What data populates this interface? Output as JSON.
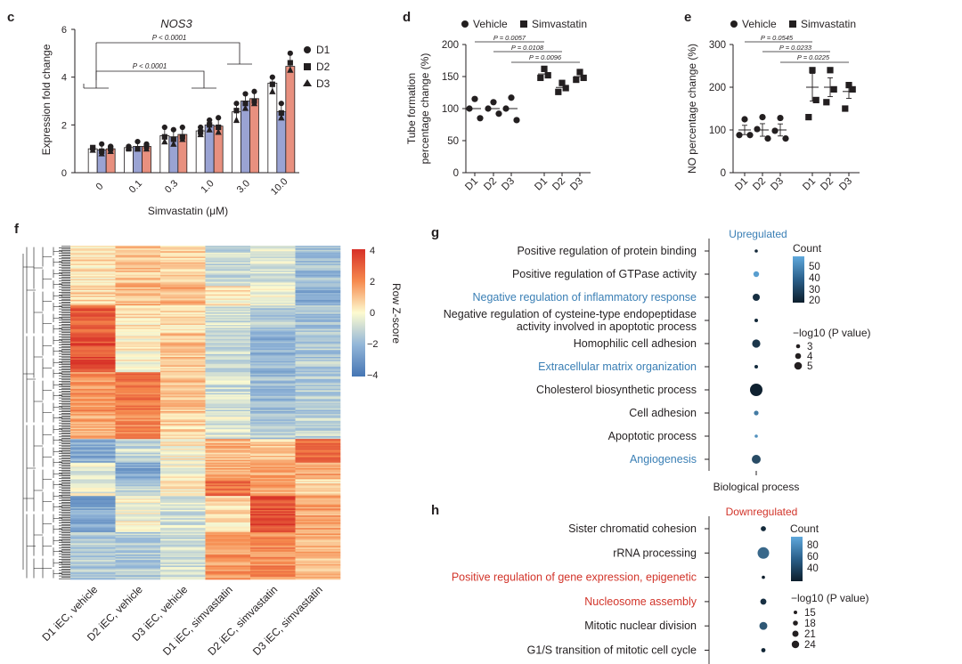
{
  "colors": {
    "vehicle_bar": "#9aa3d3",
    "simva_bar": "#e8907f",
    "blue_term": "#3a7fb5",
    "red_term": "#d2342a",
    "heat_high": "#d73027",
    "heat_mid": "#fdfbd0",
    "heat_low": "#4575b4"
  },
  "panels": {
    "c": {
      "letter": "c",
      "title": "NOS3",
      "ylabel": "Expression fold change",
      "xlabel": "Simvastatin (μM)",
      "p1": "P < 0.0001",
      "p2": "P < 0.0001",
      "legend": [
        "D1",
        "D2",
        "D3"
      ]
    },
    "d": {
      "letter": "d",
      "legend_vehicle": "Vehicle",
      "legend_simva": "Simvastatin",
      "ylabel1": "Tube formation",
      "ylabel2": "percentage change (%)",
      "p": [
        "P = 0.0057",
        "P = 0.0108",
        "P = 0.0096"
      ]
    },
    "e": {
      "letter": "e",
      "legend_vehicle": "Vehicle",
      "legend_simva": "Simvastatin",
      "ylabel": "NO percentage change (%)",
      "p": [
        "P = 0.0545",
        "P = 0.0233",
        "P = 0.0225"
      ]
    },
    "f": {
      "letter": "f",
      "colorbar_title": "Row Z-score",
      "colorbar_ticks": [
        "4",
        "2",
        "0",
        "−2",
        "−4"
      ]
    },
    "g": {
      "letter": "g",
      "header": "Upregulated",
      "xlabel": "Biological process",
      "count_title": "Count",
      "count_ticks": [
        "50",
        "40",
        "30",
        "20"
      ],
      "size_title": "−log10 (P value)",
      "size_ticks": [
        "3",
        "4",
        "5"
      ]
    },
    "h": {
      "letter": "h",
      "header": "Downregulated",
      "count_title": "Count",
      "count_ticks": [
        "80",
        "60",
        "40"
      ],
      "size_title": "−log10 (P value)",
      "size_ticks": [
        "15",
        "18",
        "21",
        "24"
      ]
    }
  },
  "chart_data": [
    {
      "id": "c",
      "type": "bar",
      "title": "NOS3",
      "xlabel": "Simvastatin (μM)",
      "ylabel": "Expression fold change",
      "categories": [
        "0",
        "0.1",
        "0.3",
        "1.0",
        "3.0",
        "10.0"
      ],
      "ylim": [
        0,
        6
      ],
      "yticks": [
        0,
        2,
        4,
        6
      ],
      "series": [
        {
          "values": [
            1.0,
            1.05,
            1.55,
            1.75,
            2.55,
            3.75
          ],
          "points": [
            [
              1.0,
              1.05,
              0.95
            ],
            [
              1.1,
              1.0,
              1.05
            ],
            [
              1.9,
              1.5,
              1.3
            ],
            [
              1.9,
              1.7,
              1.6
            ],
            [
              2.9,
              2.6,
              2.2
            ],
            [
              4.0,
              3.7,
              3.4
            ]
          ]
        },
        {
          "values": [
            0.95,
            1.1,
            1.5,
            2.0,
            3.0,
            2.55
          ],
          "points": [
            [
              1.2,
              0.9,
              0.8
            ],
            [
              1.3,
              1.0,
              1.0
            ],
            [
              1.8,
              1.4,
              1.2
            ],
            [
              2.2,
              2.0,
              1.8
            ],
            [
              3.3,
              2.9,
              2.7
            ],
            [
              2.9,
              2.5,
              2.3
            ]
          ]
        },
        {
          "values": [
            1.0,
            1.1,
            1.6,
            1.95,
            3.1,
            4.45
          ],
          "points": [
            [
              1.1,
              1.0,
              0.9
            ],
            [
              1.2,
              1.1,
              1.0
            ],
            [
              1.9,
              1.5,
              1.4
            ],
            [
              2.3,
              1.9,
              1.7
            ],
            [
              3.4,
              3.0,
              2.9
            ],
            [
              5.0,
              4.6,
              4.3
            ]
          ]
        }
      ],
      "legend": [
        "D1",
        "D2",
        "D3"
      ],
      "annotations": [
        "P < 0.0001",
        "P < 0.0001"
      ]
    },
    {
      "id": "d",
      "type": "scatter",
      "ylabel": "Tube formation percentage change (%)",
      "categories": [
        "D1",
        "D2",
        "D3",
        "D1",
        "D2",
        "D3"
      ],
      "ylim": [
        0,
        200
      ],
      "yticks": [
        0,
        50,
        100,
        150,
        200
      ],
      "series": [
        {
          "name": "Vehicle",
          "values": [
            [
              115,
              100,
              85
            ],
            [
              110,
              100,
              92
            ],
            [
              117,
              100,
              82
            ]
          ],
          "means": [
            100,
            100,
            100
          ]
        },
        {
          "name": "Simvastatin",
          "values": [
            [
              162,
              152,
              148
            ],
            [
              140,
              132,
              126
            ],
            [
              157,
              148,
              145
            ]
          ],
          "means": [
            154,
            133,
            150
          ]
        }
      ],
      "annotations": [
        "P = 0.0057",
        "P = 0.0108",
        "P = 0.0096"
      ]
    },
    {
      "id": "e",
      "type": "scatter",
      "ylabel": "NO percentage change (%)",
      "categories": [
        "D1",
        "D2",
        "D3",
        "D1",
        "D2",
        "D3"
      ],
      "ylim": [
        0,
        300
      ],
      "yticks": [
        0,
        100,
        200,
        300
      ],
      "series": [
        {
          "name": "Vehicle",
          "values": [
            [
              125,
              88,
              88
            ],
            [
              130,
              102,
              80
            ],
            [
              128,
              98,
              80
            ]
          ],
          "means": [
            100,
            100,
            100
          ]
        },
        {
          "name": "Simvastatin",
          "values": [
            [
              240,
              170,
              130
            ],
            [
              240,
              195,
              165
            ],
            [
              205,
              195,
              150
            ]
          ],
          "means": [
            200,
            200,
            190
          ]
        }
      ],
      "annotations": [
        "P = 0.0545",
        "P = 0.0233",
        "P = 0.0225"
      ]
    },
    {
      "id": "f",
      "type": "heatmap",
      "columns": [
        "D1 iEC, vehicle",
        "D2 iEC, vehicle",
        "D3 iEC, vehicle",
        "D1 iEC, simvastatin",
        "D2 iEC, simvastatin",
        "D3 iEC, simvastatin"
      ],
      "colorbar_title": "Row Z-score",
      "zlim": [
        -4,
        4
      ],
      "blocks": [
        {
          "rows": 0.12,
          "values": [
            0.5,
            1.0,
            0.8,
            -1.0,
            -0.6,
            -1.8
          ]
        },
        {
          "rows": 0.06,
          "values": [
            0.6,
            1.2,
            1.3,
            0.2,
            -0.3,
            -2.2
          ]
        },
        {
          "rows": 0.08,
          "values": [
            3.0,
            0.4,
            0.6,
            -0.8,
            -1.4,
            -1.6
          ]
        },
        {
          "rows": 0.12,
          "values": [
            3.3,
            0.1,
            1.0,
            -1.0,
            -2.0,
            -1.4
          ]
        },
        {
          "rows": 0.12,
          "values": [
            1.8,
            2.4,
            0.9,
            -0.8,
            -1.8,
            -1.3
          ]
        },
        {
          "rows": 0.08,
          "values": [
            1.5,
            2.0,
            0.6,
            -0.6,
            -1.4,
            -1.1
          ]
        },
        {
          "rows": 0.07,
          "values": [
            -2.4,
            -0.9,
            0.1,
            1.2,
            0.8,
            2.6
          ]
        },
        {
          "rows": 0.05,
          "values": [
            -0.4,
            -2.4,
            -0.2,
            1.4,
            1.3,
            1.6
          ]
        },
        {
          "rows": 0.05,
          "values": [
            -0.3,
            -1.2,
            0.3,
            2.6,
            1.4,
            0.6
          ]
        },
        {
          "rows": 0.11,
          "values": [
            -2.5,
            -0.1,
            -0.7,
            0.6,
            3.4,
            1.6
          ]
        },
        {
          "rows": 0.14,
          "values": [
            -1.4,
            -1.4,
            -0.9,
            1.8,
            2.0,
            1.2
          ]
        }
      ]
    },
    {
      "id": "g",
      "type": "scatter",
      "title": "Upregulated",
      "xlabel": "Biological process",
      "terms": [
        {
          "label": "Positive regulation of protein binding",
          "count": 18,
          "neglog10p": 2.6,
          "highlight": false
        },
        {
          "label": "Positive regulation of GTPase activity",
          "count": 52,
          "neglog10p": 3.5,
          "highlight": false
        },
        {
          "label": "Negative regulation of inflammatory response",
          "count": 20,
          "neglog10p": 3.9,
          "highlight": true
        },
        {
          "label": "Negative regulation of cysteine-type endopeptidase activity involved in apoptotic process",
          "count": 18,
          "neglog10p": 2.9,
          "highlight": false
        },
        {
          "label": "Homophilic cell adhesion",
          "count": 22,
          "neglog10p": 4.2,
          "highlight": false
        },
        {
          "label": "Extracellular matrix organization",
          "count": 19,
          "neglog10p": 2.9,
          "highlight": true
        },
        {
          "label": "Cholesterol biosynthetic process",
          "count": 16,
          "neglog10p": 5.4,
          "highlight": false
        },
        {
          "label": "Cell adhesion",
          "count": 42,
          "neglog10p": 3.2,
          "highlight": false
        },
        {
          "label": "Apoptotic process",
          "count": 48,
          "neglog10p": 2.8,
          "highlight": false
        },
        {
          "label": "Angiogenesis",
          "count": 28,
          "neglog10p": 4.4,
          "highlight": true
        }
      ],
      "count_range": [
        15,
        55
      ],
      "size_legend": [
        3,
        4,
        5
      ]
    },
    {
      "id": "h",
      "type": "scatter",
      "title": "Downregulated",
      "terms": [
        {
          "label": "Sister chromatid cohesion",
          "count": 35,
          "neglog10p": 16,
          "highlight": false
        },
        {
          "label": "rRNA processing",
          "count": 62,
          "neglog10p": 23,
          "highlight": false
        },
        {
          "label": "Positive regulation of gene expression, epigenetic",
          "count": 30,
          "neglog10p": 13,
          "highlight": true
        },
        {
          "label": "Nucleosome assembly",
          "count": 38,
          "neglog10p": 17,
          "highlight": true
        },
        {
          "label": "Mitotic nuclear division",
          "count": 55,
          "neglog10p": 19,
          "highlight": false
        },
        {
          "label": "G1/S transition of mitotic cell cycle",
          "count": 33,
          "neglog10p": 15,
          "highlight": false
        }
      ],
      "count_range": [
        30,
        90
      ],
      "size_legend": [
        15,
        18,
        21,
        24
      ]
    }
  ]
}
